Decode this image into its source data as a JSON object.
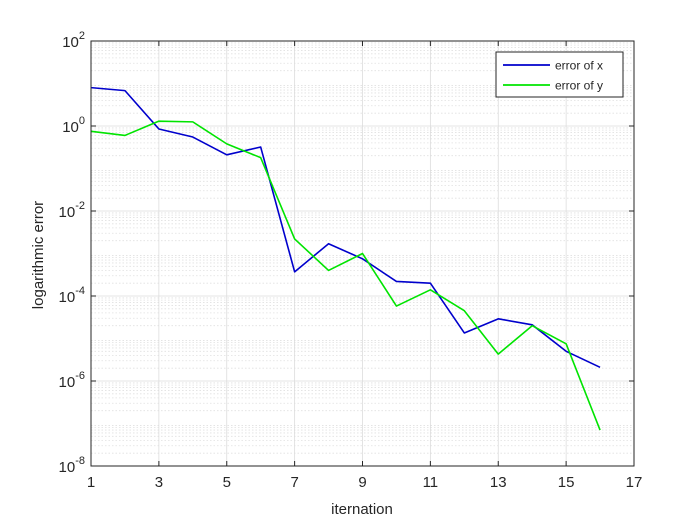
{
  "chart_data": {
    "type": "line",
    "title": "",
    "xlabel": "iternation",
    "ylabel": "logarithmic error",
    "xlim": [
      1,
      17
    ],
    "ylim": [
      1e-08,
      100
    ],
    "yscale": "log",
    "grid": true,
    "minor_grid": true,
    "legend_position": "top-right",
    "x_ticks": [
      1,
      3,
      5,
      7,
      9,
      11,
      13,
      15,
      17
    ],
    "x_tick_labels": [
      "1",
      "3",
      "5",
      "7",
      "9",
      "11",
      "13",
      "15",
      "17"
    ],
    "y_ticks": [
      1e-08,
      1e-06,
      0.0001,
      0.01,
      1,
      100
    ],
    "y_tick_labels": [
      {
        "base": "10",
        "exp": "-8"
      },
      {
        "base": "10",
        "exp": "-6"
      },
      {
        "base": "10",
        "exp": "-4"
      },
      {
        "base": "10",
        "exp": "-2"
      },
      {
        "base": "10",
        "exp": "0"
      },
      {
        "base": "10",
        "exp": "2"
      }
    ],
    "x": [
      1,
      2,
      3,
      4,
      5,
      6,
      7,
      8,
      9,
      10,
      11,
      12,
      13,
      14,
      15,
      16
    ],
    "series": [
      {
        "name": "error of x",
        "color": "#0000cc",
        "values": [
          8.0,
          6.8,
          0.85,
          0.55,
          0.21,
          0.32,
          0.00037,
          0.0017,
          0.00075,
          0.00022,
          0.0002,
          1.35e-05,
          2.9e-05,
          2.1e-05,
          5e-06,
          2.1e-06
        ]
      },
      {
        "name": "error of y",
        "color": "#00e400",
        "values": [
          0.75,
          0.6,
          1.3,
          1.25,
          0.38,
          0.18,
          0.0022,
          0.0004,
          0.001,
          5.8e-05,
          0.00014,
          4.5e-05,
          4.3e-06,
          2e-05,
          7.5e-06,
          7e-08
        ]
      }
    ]
  }
}
